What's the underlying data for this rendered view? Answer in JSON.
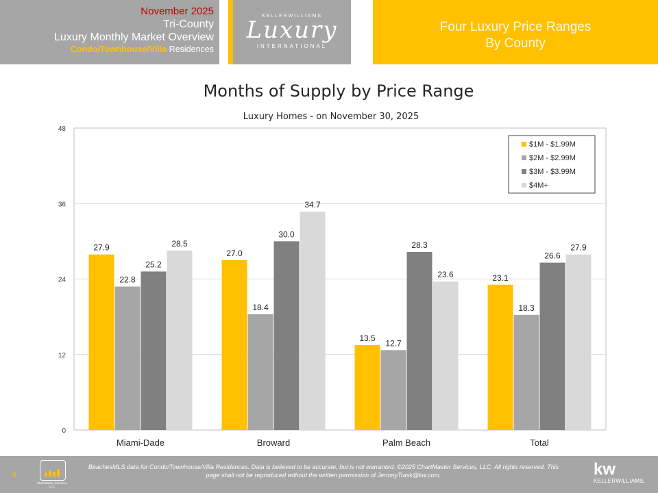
{
  "header": {
    "date": "November 2025",
    "region": "Tri-County",
    "report": "Luxury Monthly Market Overview",
    "subtitle_accent": "Condo/Townhouse/Villa",
    "subtitle_rest": " Residences",
    "logo": {
      "top": "KELLERWILLIAMS",
      "main": "Luxury",
      "bottom": "INTERNATIONAL"
    },
    "right_line1": "Four Luxury Price Ranges",
    "right_line2": "By County"
  },
  "chart_data": {
    "type": "bar",
    "title": "Months of Supply by Price Range",
    "subtitle": "Luxury Homes - on November 30, 2025",
    "categories": [
      "Miami-Dade",
      "Broward",
      "Palm Beach",
      "Total"
    ],
    "series": [
      {
        "name": "$1M - $1.99M",
        "values": [
          27.9,
          27.0,
          13.5,
          23.1
        ],
        "color": "#ffc000"
      },
      {
        "name": "$2M - $2.99M",
        "values": [
          22.8,
          18.4,
          12.7,
          18.3
        ],
        "color": "#a6a6a6"
      },
      {
        "name": "$3M - $3.99M",
        "values": [
          25.2,
          30.0,
          28.3,
          26.6
        ],
        "color": "#808080"
      },
      {
        "name": "$4M+",
        "values": [
          28.5,
          34.7,
          23.6,
          27.9
        ],
        "color": "#d9d9d9"
      }
    ],
    "value_labels": [
      [
        "27.9",
        "27.0",
        "13.5",
        "23.1"
      ],
      [
        "22.8",
        "18.4",
        "12.7",
        "18.3"
      ],
      [
        "25.2",
        "30.0",
        "28.3",
        "26.6"
      ],
      [
        "28.5",
        "34.7",
        "23.6",
        "27.9"
      ]
    ],
    "ylim": [
      0,
      48
    ],
    "yticks": [
      0,
      12,
      24,
      36,
      48
    ],
    "grid": true,
    "legend": "top-right"
  },
  "footer": {
    "page_number": "6",
    "logo_label": "ChartMaster Services, LLC",
    "disclaimer": "BeachesMLS data for Condo/Townhouse/Villa Residences.  Data is believed to be accurate, but is not warranted.   ©2025  ChartMaster Services, LLC.  All rights reserved. This page shall not be reproduced without the written permission of JeromyTrask@kw.com.",
    "kw_mark": "kw",
    "kw_name": "KELLERWILLIAMS."
  }
}
